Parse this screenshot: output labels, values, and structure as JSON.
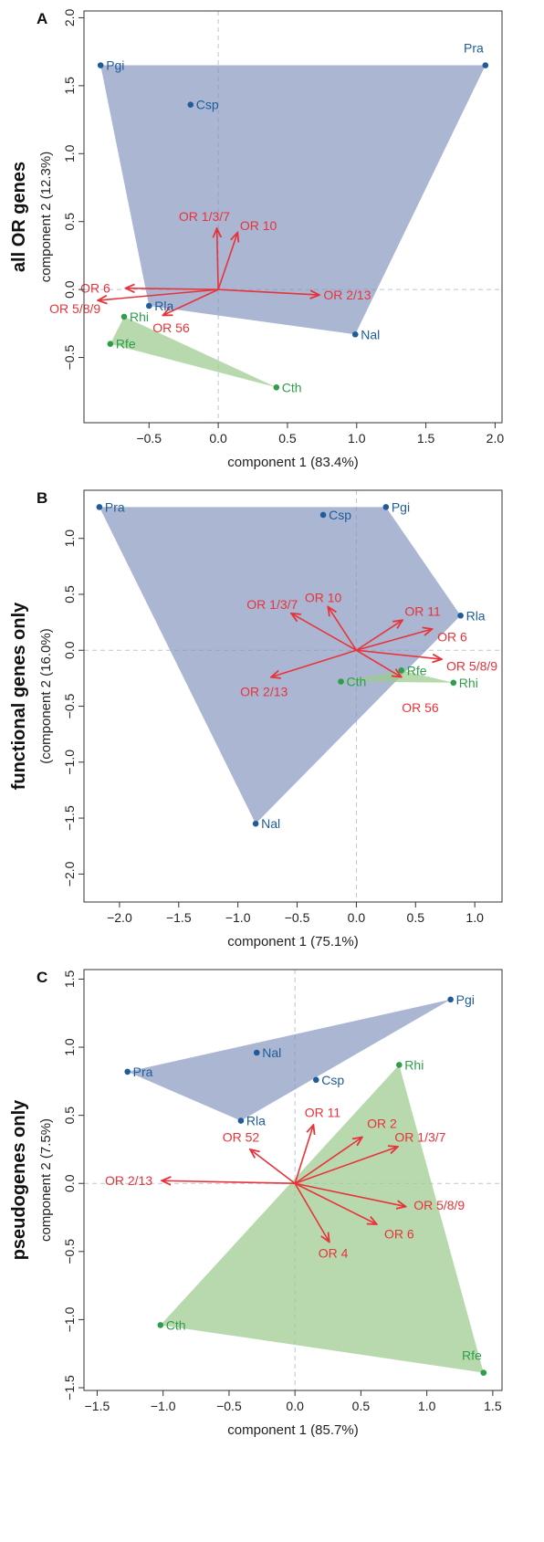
{
  "colors": {
    "blue_group": "#1f5c99",
    "green_group": "#2e9e4a",
    "blue_fill": "#8193bd",
    "green_fill": "#9ccb8e",
    "arrow": "#e8333a"
  },
  "chart_data": [
    {
      "type": "scatter",
      "panel": "A",
      "row_title": "all OR genes",
      "xlabel": "component 1 (83.4%)",
      "ylabel": "component 2 (12.3%)",
      "xlim": [
        -0.97,
        2.05
      ],
      "ylim": [
        -0.98,
        2.05
      ],
      "xticks": [
        -0.5,
        0.0,
        0.5,
        1.0,
        1.5,
        2.0
      ],
      "xtick_labels": [
        "−0.5",
        "0.0",
        "0.5",
        "1.0",
        "1.5",
        "2.0"
      ],
      "yticks": [
        -0.5,
        0.0,
        0.5,
        1.0,
        1.5,
        2.0
      ],
      "ytick_labels": [
        "−0.5",
        "0.0",
        "0.5",
        "1.0",
        "1.5",
        "2.0"
      ],
      "points": [
        {
          "name": "Pgi",
          "x": -0.85,
          "y": 1.65,
          "group": "blue",
          "anchor": "r"
        },
        {
          "name": "Pra",
          "x": 1.93,
          "y": 1.65,
          "group": "blue",
          "anchor": "tl"
        },
        {
          "name": "Csp",
          "x": -0.2,
          "y": 1.36,
          "group": "blue",
          "anchor": "r"
        },
        {
          "name": "Rla",
          "x": -0.5,
          "y": -0.12,
          "group": "blue",
          "anchor": "r"
        },
        {
          "name": "Nal",
          "x": 0.99,
          "y": -0.33,
          "group": "blue",
          "anchor": "r"
        },
        {
          "name": "Rhi",
          "x": -0.68,
          "y": -0.2,
          "group": "green",
          "anchor": "r"
        },
        {
          "name": "Rfe",
          "x": -0.78,
          "y": -0.4,
          "group": "green",
          "anchor": "r"
        },
        {
          "name": "Cth",
          "x": 0.42,
          "y": -0.72,
          "group": "green",
          "anchor": "r"
        }
      ],
      "hulls": {
        "blue": [
          "Pgi",
          "Pra",
          "Nal",
          "Rla"
        ],
        "green": [
          "Rhi",
          "Rfe",
          "Cth"
        ]
      },
      "arrows": [
        {
          "label": "OR 1/3/7",
          "x": -0.01,
          "y": 0.45,
          "lx": -0.1,
          "ly": 0.54,
          "anchor": "middle"
        },
        {
          "label": "OR 10",
          "x": 0.14,
          "y": 0.42,
          "lx": 0.29,
          "ly": 0.47,
          "anchor": "middle"
        },
        {
          "label": "OR 6",
          "x": -0.67,
          "y": 0.01,
          "lx": -0.78,
          "ly": 0.01,
          "anchor": "end"
        },
        {
          "label": "OR 5/8/9",
          "x": -0.87,
          "y": -0.08,
          "lx": -0.85,
          "ly": -0.14,
          "anchor": "end"
        },
        {
          "label": "OR 56",
          "x": -0.4,
          "y": -0.19,
          "lx": -0.34,
          "ly": -0.28,
          "anchor": "middle"
        },
        {
          "label": "OR 2/13",
          "x": 0.73,
          "y": -0.04,
          "lx": 0.76,
          "ly": -0.04,
          "anchor": "start"
        }
      ]
    },
    {
      "type": "scatter",
      "panel": "B",
      "row_title": "functional genes only",
      "xlabel": "component 1 (75.1%)",
      "ylabel": "(component 2 (16.0%)",
      "xlim": [
        -2.3,
        1.23
      ],
      "ylim": [
        -2.25,
        1.43
      ],
      "xticks": [
        -2.0,
        -1.5,
        -1.0,
        -0.5,
        0.0,
        0.5,
        1.0
      ],
      "xtick_labels": [
        "−2.0",
        "−1.5",
        "−1.0",
        "−0.5",
        "0.0",
        "0.5",
        "1.0"
      ],
      "yticks": [
        -2.0,
        -1.5,
        -1.0,
        -0.5,
        0.0,
        0.5,
        1.0
      ],
      "ytick_labels": [
        "−2.0",
        "−1.5",
        "−1.0",
        "−0.5",
        "0.0",
        "0.5",
        "1.0"
      ],
      "points": [
        {
          "name": "Pra",
          "x": -2.17,
          "y": 1.28,
          "group": "blue",
          "anchor": "r"
        },
        {
          "name": "Csp",
          "x": -0.28,
          "y": 1.21,
          "group": "blue",
          "anchor": "r"
        },
        {
          "name": "Pgi",
          "x": 0.25,
          "y": 1.28,
          "group": "blue",
          "anchor": "r"
        },
        {
          "name": "Rla",
          "x": 0.88,
          "y": 0.31,
          "group": "blue",
          "anchor": "r"
        },
        {
          "name": "Nal",
          "x": -0.85,
          "y": -1.55,
          "group": "blue",
          "anchor": "r"
        },
        {
          "name": "Rfe",
          "x": 0.38,
          "y": -0.18,
          "group": "green",
          "anchor": "r"
        },
        {
          "name": "Cth",
          "x": -0.13,
          "y": -0.28,
          "group": "green",
          "anchor": "r"
        },
        {
          "name": "Rhi",
          "x": 0.82,
          "y": -0.29,
          "group": "green",
          "anchor": "r"
        }
      ],
      "hulls": {
        "blue": [
          "Pra",
          "Pgi",
          "Rla",
          "Nal"
        ],
        "green": [
          "Cth",
          "Rfe",
          "Rhi"
        ]
      },
      "arrows": [
        {
          "label": "OR 1/3/7",
          "x": -0.55,
          "y": 0.33,
          "lx": -0.71,
          "ly": 0.41,
          "anchor": "middle"
        },
        {
          "label": "OR 10",
          "x": -0.24,
          "y": 0.39,
          "lx": -0.28,
          "ly": 0.47,
          "anchor": "middle"
        },
        {
          "label": "OR 11",
          "x": 0.39,
          "y": 0.27,
          "lx": 0.56,
          "ly": 0.35,
          "anchor": "middle"
        },
        {
          "label": "OR 6",
          "x": 0.64,
          "y": 0.19,
          "lx": 0.81,
          "ly": 0.12,
          "anchor": "middle"
        },
        {
          "label": "OR 5/8/9",
          "x": 0.72,
          "y": -0.08,
          "lx": 0.76,
          "ly": -0.14,
          "anchor": "start"
        },
        {
          "label": "OR 56",
          "x": 0.38,
          "y": -0.24,
          "lx": 0.54,
          "ly": -0.51,
          "anchor": "middle"
        },
        {
          "label": "OR 2/13",
          "x": -0.72,
          "y": -0.24,
          "lx": -0.78,
          "ly": -0.37,
          "anchor": "middle"
        }
      ]
    },
    {
      "type": "scatter",
      "panel": "C",
      "row_title": "pseudogenes only",
      "xlabel": "component 1 (85.7%)",
      "ylabel": "component 2 (7.5%)",
      "xlim": [
        -1.6,
        1.57
      ],
      "ylim": [
        -1.52,
        1.57
      ],
      "xticks": [
        -1.5,
        -1.0,
        -0.5,
        0.0,
        0.5,
        1.0,
        1.5
      ],
      "xtick_labels": [
        "−1.5",
        "−1.0",
        "−0.5",
        "0.0",
        "0.5",
        "1.0",
        "1.5"
      ],
      "yticks": [
        -1.5,
        -1.0,
        -0.5,
        0.0,
        0.5,
        1.0,
        1.5
      ],
      "ytick_labels": [
        "−1.5",
        "−1.0",
        "−0.5",
        "0.0",
        "0.5",
        "1.0",
        "1.5"
      ],
      "points": [
        {
          "name": "Pgi",
          "x": 1.18,
          "y": 1.35,
          "group": "blue",
          "anchor": "r"
        },
        {
          "name": "Nal",
          "x": -0.29,
          "y": 0.96,
          "group": "blue",
          "anchor": "r"
        },
        {
          "name": "Pra",
          "x": -1.27,
          "y": 0.82,
          "group": "blue",
          "anchor": "r"
        },
        {
          "name": "Csp",
          "x": 0.16,
          "y": 0.76,
          "group": "blue",
          "anchor": "r"
        },
        {
          "name": "Rla",
          "x": -0.41,
          "y": 0.46,
          "group": "blue",
          "anchor": "r"
        },
        {
          "name": "Rhi",
          "x": 0.79,
          "y": 0.87,
          "group": "green",
          "anchor": "r"
        },
        {
          "name": "Cth",
          "x": -1.02,
          "y": -1.04,
          "group": "green",
          "anchor": "r"
        },
        {
          "name": "Rfe",
          "x": 1.43,
          "y": -1.39,
          "group": "green",
          "anchor": "tl"
        }
      ],
      "hulls": {
        "blue": [
          "Pra",
          "Pgi",
          "Rla"
        ],
        "green": [
          "Rhi",
          "Rfe",
          "Cth"
        ]
      },
      "arrows": [
        {
          "label": "OR 52",
          "x": -0.34,
          "y": 0.25,
          "lx": -0.41,
          "ly": 0.34,
          "anchor": "middle"
        },
        {
          "label": "OR 11",
          "x": 0.14,
          "y": 0.43,
          "lx": 0.21,
          "ly": 0.52,
          "anchor": "middle"
        },
        {
          "label": "OR 2",
          "x": 0.51,
          "y": 0.34,
          "lx": 0.66,
          "ly": 0.44,
          "anchor": "middle"
        },
        {
          "label": "OR 1/3/7",
          "x": 0.78,
          "y": 0.27,
          "lx": 0.95,
          "ly": 0.34,
          "anchor": "middle"
        },
        {
          "label": "OR 2/13",
          "x": -1.01,
          "y": 0.02,
          "lx": -1.08,
          "ly": 0.02,
          "anchor": "end"
        },
        {
          "label": "OR 5/8/9",
          "x": 0.84,
          "y": -0.17,
          "lx": 0.9,
          "ly": -0.16,
          "anchor": "start"
        },
        {
          "label": "OR 6",
          "x": 0.62,
          "y": -0.3,
          "lx": 0.79,
          "ly": -0.37,
          "anchor": "middle"
        },
        {
          "label": "OR 4",
          "x": 0.26,
          "y": -0.43,
          "lx": 0.29,
          "ly": -0.51,
          "anchor": "middle"
        }
      ]
    }
  ]
}
